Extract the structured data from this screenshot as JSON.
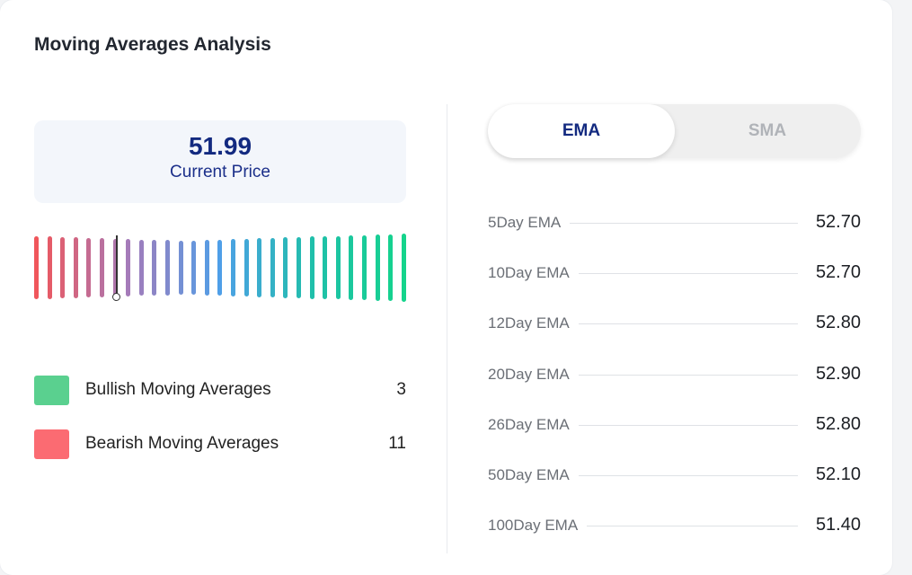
{
  "header": {
    "title": "Moving Averages Analysis"
  },
  "price": {
    "value": "51.99",
    "label": "Current Price"
  },
  "gauge": {
    "bar_count": 29,
    "needle_index": 6,
    "color_stops": [
      "#f0565b",
      "#a57bb9",
      "#4f9fe8",
      "#1fbfaa",
      "#15d48c"
    ]
  },
  "legend": {
    "bullish": {
      "label": "Bullish Moving Averages",
      "count": "3",
      "color": "#5ad08f"
    },
    "bearish": {
      "label": "Bearish Moving Averages",
      "count": "11",
      "color": "#fb6b72"
    }
  },
  "tabs": {
    "ema": "EMA",
    "sma": "SMA",
    "active": "EMA"
  },
  "ema_rows": [
    {
      "label": "5Day EMA",
      "value": "52.70"
    },
    {
      "label": "10Day EMA",
      "value": "52.70"
    },
    {
      "label": "12Day EMA",
      "value": "52.80"
    },
    {
      "label": "20Day EMA",
      "value": "52.90"
    },
    {
      "label": "26Day EMA",
      "value": "52.80"
    },
    {
      "label": "50Day EMA",
      "value": "52.10"
    },
    {
      "label": "100Day EMA",
      "value": "51.40"
    }
  ]
}
